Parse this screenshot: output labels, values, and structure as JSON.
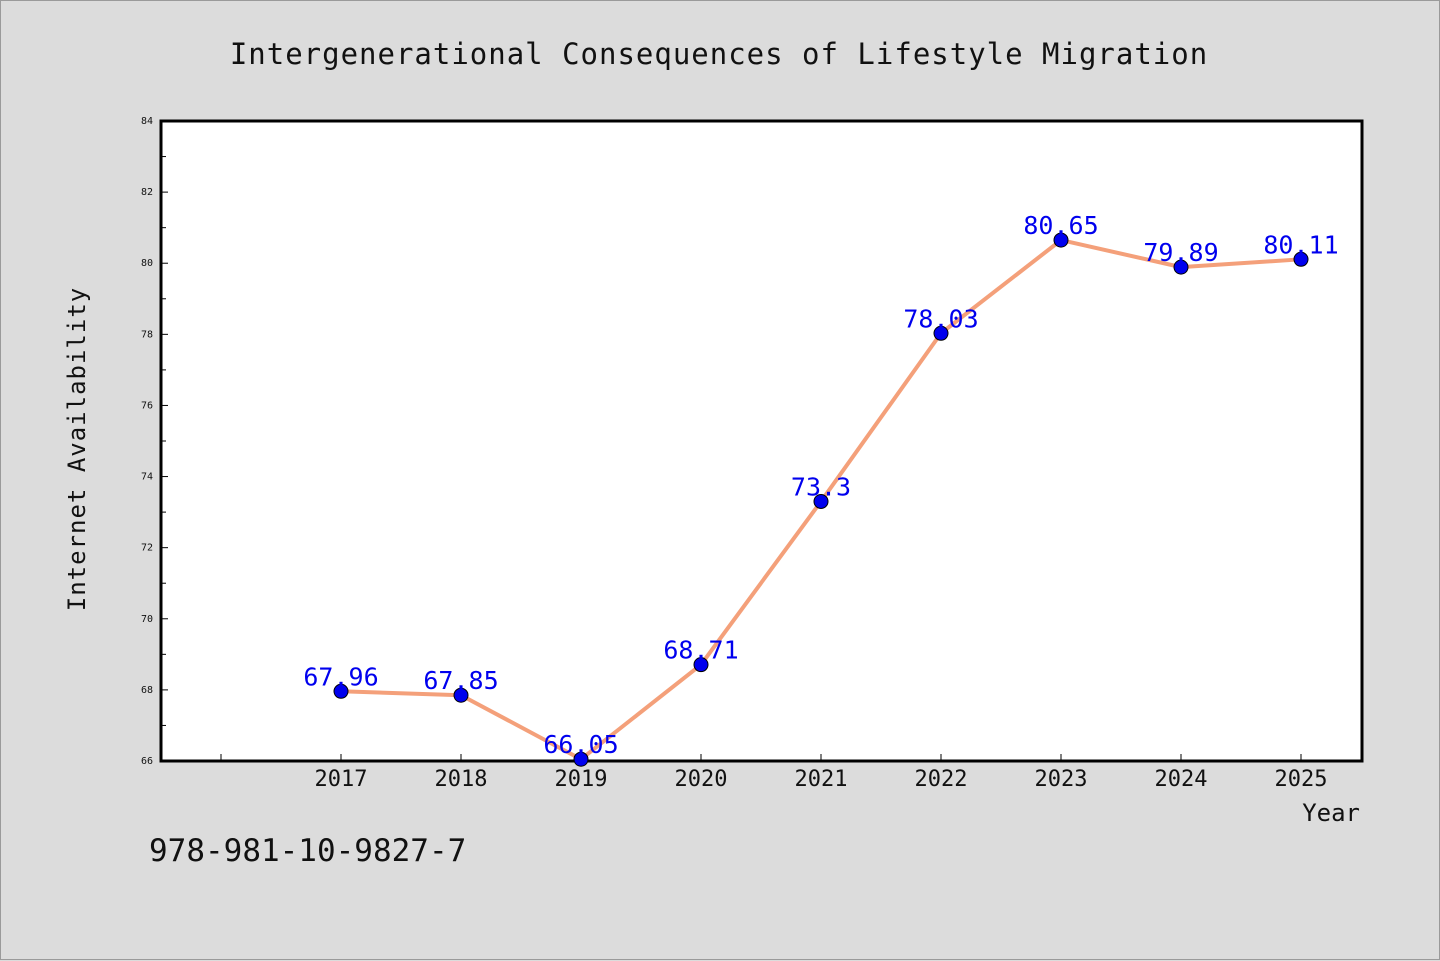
{
  "chart_data": {
    "type": "line",
    "title": "Intergenerational Consequences of Lifestyle Migration",
    "xlabel": "Year",
    "ylabel": "Internet Availability",
    "categories": [
      "2017",
      "2018",
      "2019",
      "2020",
      "2021",
      "2022",
      "2023",
      "2024",
      "2025"
    ],
    "series": [
      {
        "values": [
          67.96,
          67.85,
          66.05,
          68.71,
          73.3,
          78.03,
          80.65,
          79.89,
          80.11
        ],
        "labels": [
          "67.96",
          "67.85",
          "66.05",
          "68.71",
          "73.3",
          "78.03",
          "80.65",
          "79.89",
          "80.11"
        ],
        "line_color": "#f4a07a",
        "marker_color": "#0000ee",
        "label_color": "#0000ee"
      }
    ],
    "ylim": [
      66,
      84
    ],
    "y_ticks": [
      "66",
      "68",
      "70",
      "72",
      "74",
      "76",
      "78",
      "80",
      "82",
      "84"
    ],
    "grid": false,
    "legend": "none"
  },
  "footer": {
    "isbn": "978-981-10-9827-7"
  }
}
